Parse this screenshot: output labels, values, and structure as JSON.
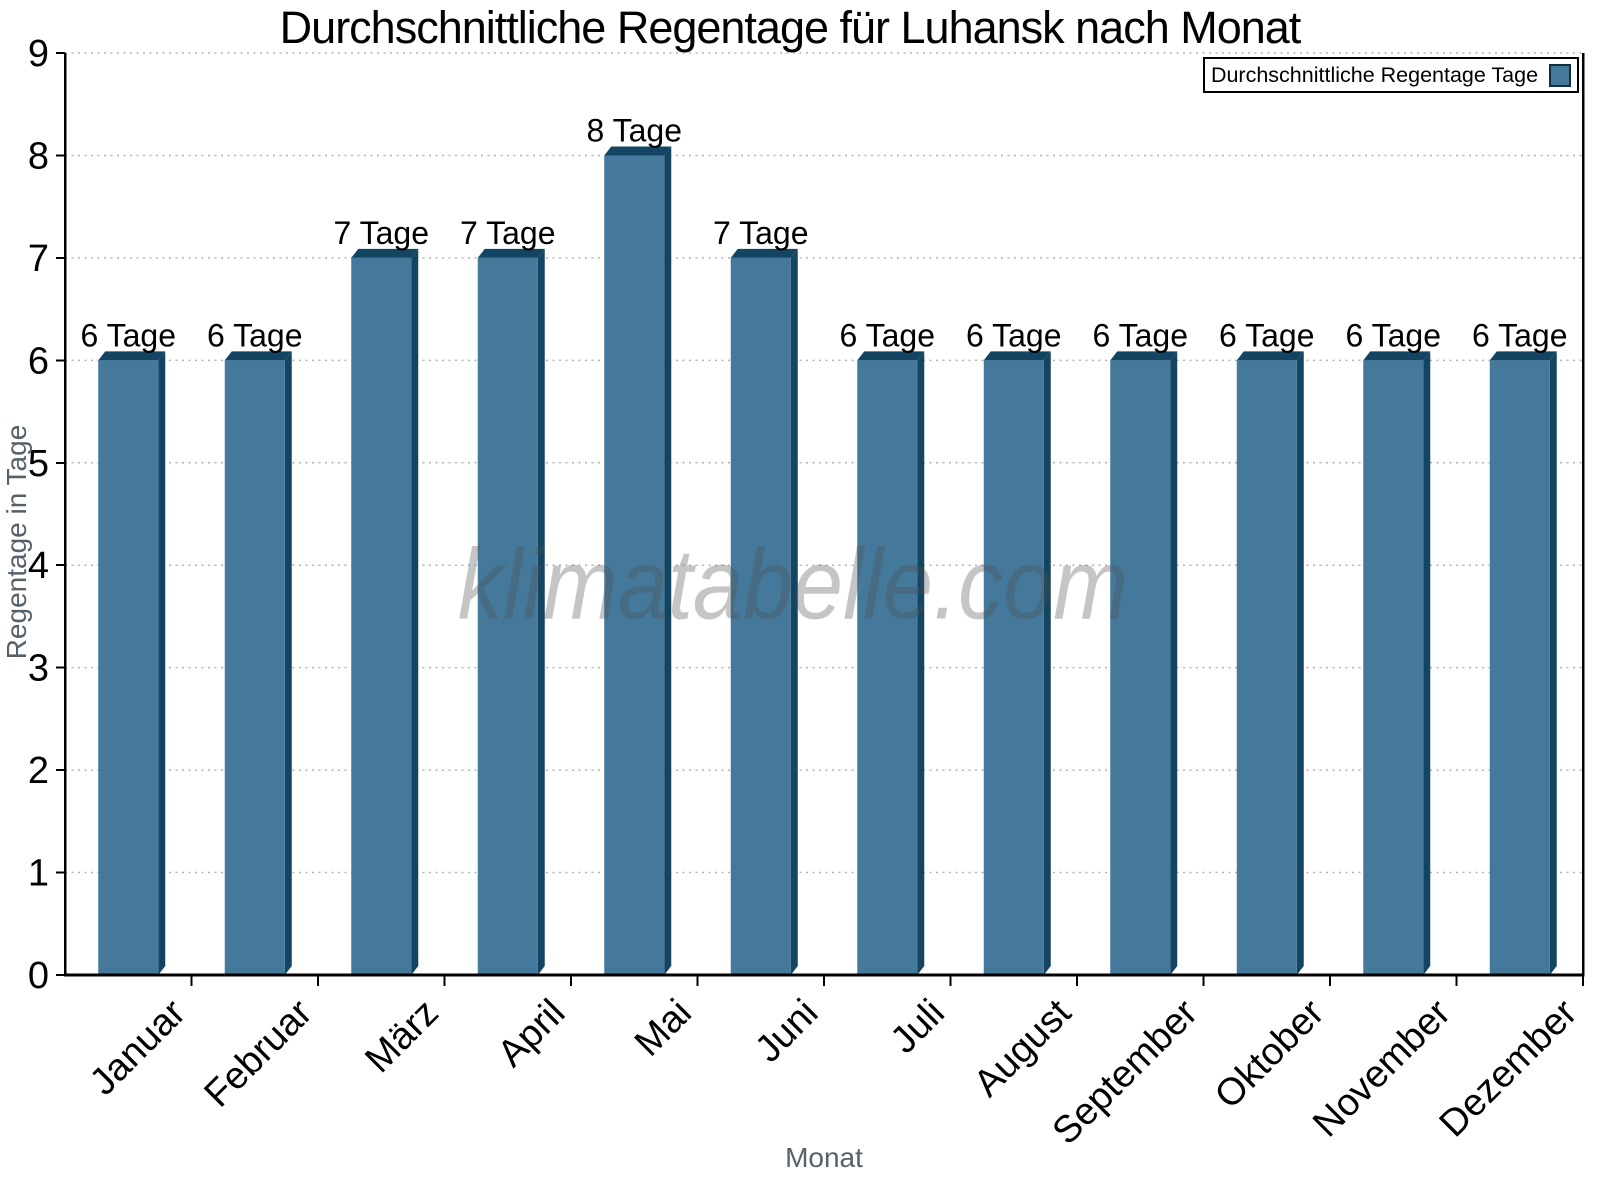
{
  "chart_data": {
    "type": "bar",
    "title": "Durchschnittliche Regentage für Luhansk nach Monat",
    "xlabel": "Monat",
    "ylabel": "Regentage in Tage",
    "categories": [
      "Januar",
      "Februar",
      "März",
      "April",
      "Mai",
      "Juni",
      "Juli",
      "August",
      "September",
      "Oktober",
      "November",
      "Dezember"
    ],
    "values": [
      6,
      6,
      7,
      7,
      8,
      7,
      6,
      6,
      6,
      6,
      6,
      6
    ],
    "bar_labels": [
      "6 Tage",
      "6 Tage",
      "7 Tage",
      "7 Tage",
      "8 Tage",
      "7 Tage",
      "6 Tage",
      "6 Tage",
      "6 Tage",
      "6 Tage",
      "6 Tage",
      "6 Tage"
    ],
    "ylim": [
      0,
      9
    ],
    "yticks": [
      0,
      1,
      2,
      3,
      4,
      5,
      6,
      7,
      8,
      9
    ],
    "grid": "horizontal-dotted",
    "legend": {
      "label": "Durchschnittliche Regentage Tage",
      "position": "top-right"
    },
    "watermark": "klimatabelle.com",
    "colors": {
      "bar_face": "#44799C",
      "bar_side": "#134562",
      "axis": "#000000",
      "gridline": "#b3b3b3",
      "axis_title": "#57616b",
      "label_text": "#000000",
      "legend_swatch_border": "#10303f"
    }
  }
}
